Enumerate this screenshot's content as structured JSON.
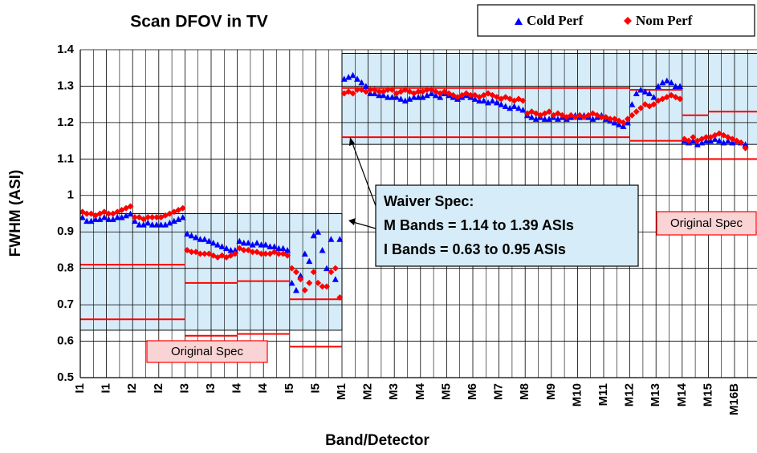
{
  "chart_data": {
    "type": "scatter",
    "title": "Scan DFOV in TV",
    "x_label": "Band/Detector",
    "y_label": "FWHM (ASI)",
    "categories": [
      "I1",
      "I1",
      "I2",
      "I2",
      "I3",
      "I3",
      "I4",
      "I4",
      "I5",
      "I5",
      "M1",
      "M2",
      "M3",
      "M4",
      "M5",
      "M6",
      "M7",
      "M8",
      "M9",
      "M10",
      "M11",
      "M12",
      "M13",
      "M14",
      "M15",
      "M16B"
    ],
    "ylim": [
      0.5,
      1.4
    ],
    "yticks": [
      0.5,
      0.6,
      0.7,
      0.8,
      0.9,
      1,
      1.1,
      1.2,
      1.3,
      1.4
    ],
    "grid": true,
    "legend": "top-right",
    "series": [
      {
        "name": "Cold Perf",
        "color": "#0000ff",
        "marker": "triangle",
        "values": [
          [
            0.94,
            0.93,
            0.93,
            0.935,
            0.935,
            0.94
          ],
          [
            0.935,
            0.935,
            0.94,
            0.94,
            0.945,
            0.95
          ],
          [
            0.93,
            0.92,
            0.92,
            0.925,
            0.92,
            0.92
          ],
          [
            0.92,
            0.92,
            0.925,
            0.93,
            0.935,
            0.94
          ],
          [
            0.895,
            0.89,
            0.885,
            0.88,
            0.88,
            0.875
          ],
          [
            0.87,
            0.865,
            0.86,
            0.855,
            0.85,
            0.85
          ],
          [
            0.875,
            0.87,
            0.87,
            0.865,
            0.87,
            0.865
          ],
          [
            0.865,
            0.86,
            0.86,
            0.855,
            0.855,
            0.85
          ],
          [
            0.76,
            0.74,
            0.78,
            0.84,
            0.82,
            0.89
          ],
          [
            0.9,
            0.85,
            0.8,
            0.88,
            0.77,
            0.88
          ],
          [
            1.32,
            1.325,
            1.33,
            1.32,
            1.31,
            1.3
          ],
          [
            1.28,
            1.28,
            1.275,
            1.275,
            1.27,
            1.27
          ],
          [
            1.27,
            1.265,
            1.26,
            1.265,
            1.27,
            1.27
          ],
          [
            1.27,
            1.275,
            1.28,
            1.275,
            1.27,
            1.28
          ],
          [
            1.275,
            1.27,
            1.265,
            1.27,
            1.275,
            1.27
          ],
          [
            1.265,
            1.26,
            1.26,
            1.255,
            1.26,
            1.255
          ],
          [
            1.25,
            1.245,
            1.24,
            1.245,
            1.24,
            1.235
          ],
          [
            1.22,
            1.215,
            1.21,
            1.215,
            1.21,
            1.21
          ],
          [
            1.215,
            1.21,
            1.215,
            1.21,
            1.215,
            1.22
          ],
          [
            1.215,
            1.22,
            1.215,
            1.21,
            1.215,
            1.22
          ],
          [
            1.21,
            1.205,
            1.2,
            1.195,
            1.19,
            1.2
          ],
          [
            1.25,
            1.28,
            1.29,
            1.285,
            1.28,
            1.27
          ],
          [
            1.3,
            1.31,
            1.315,
            1.31,
            1.3,
            1.3
          ],
          [
            1.15,
            1.145,
            1.15,
            1.14,
            1.145,
            1.15
          ],
          [
            1.15,
            1.155,
            1.15,
            1.145,
            1.15,
            1.145
          ],
          [
            1.15,
            1.145,
            1.14
          ]
        ]
      },
      {
        "name": "Nom Perf",
        "color": "#ff0000",
        "marker": "diamond",
        "values": [
          [
            0.955,
            0.95,
            0.95,
            0.945,
            0.95,
            0.955
          ],
          [
            0.95,
            0.95,
            0.955,
            0.96,
            0.965,
            0.97
          ],
          [
            0.94,
            0.94,
            0.935,
            0.94,
            0.94,
            0.94
          ],
          [
            0.94,
            0.945,
            0.95,
            0.955,
            0.96,
            0.965
          ],
          [
            0.85,
            0.845,
            0.845,
            0.84,
            0.84,
            0.84
          ],
          [
            0.835,
            0.83,
            0.835,
            0.83,
            0.835,
            0.84
          ],
          [
            0.855,
            0.85,
            0.85,
            0.845,
            0.845,
            0.84
          ],
          [
            0.84,
            0.84,
            0.845,
            0.84,
            0.84,
            0.835
          ],
          [
            0.8,
            0.79,
            0.77,
            0.74,
            0.76,
            0.79
          ],
          [
            0.76,
            0.75,
            0.75,
            0.79,
            0.8,
            0.72
          ],
          [
            1.28,
            1.285,
            1.28,
            1.29,
            1.29,
            1.285
          ],
          [
            1.29,
            1.29,
            1.285,
            1.285,
            1.29,
            1.29
          ],
          [
            1.28,
            1.285,
            1.29,
            1.285,
            1.28,
            1.285
          ],
          [
            1.285,
            1.29,
            1.29,
            1.285,
            1.28,
            1.285
          ],
          [
            1.28,
            1.275,
            1.27,
            1.275,
            1.28,
            1.275
          ],
          [
            1.275,
            1.27,
            1.275,
            1.28,
            1.275,
            1.27
          ],
          [
            1.265,
            1.27,
            1.265,
            1.26,
            1.265,
            1.26
          ],
          [
            1.225,
            1.23,
            1.225,
            1.22,
            1.225,
            1.23
          ],
          [
            1.22,
            1.225,
            1.22,
            1.215,
            1.22,
            1.215
          ],
          [
            1.22,
            1.215,
            1.22,
            1.225,
            1.22,
            1.215
          ],
          [
            1.215,
            1.21,
            1.21,
            1.205,
            1.2,
            1.21
          ],
          [
            1.22,
            1.23,
            1.24,
            1.25,
            1.245,
            1.25
          ],
          [
            1.26,
            1.265,
            1.27,
            1.275,
            1.27,
            1.265
          ],
          [
            1.155,
            1.15,
            1.16,
            1.15,
            1.155,
            1.16
          ],
          [
            1.16,
            1.165,
            1.17,
            1.165,
            1.16,
            1.155
          ],
          [
            1.15,
            1.145,
            1.13
          ]
        ]
      }
    ],
    "spec_color": "#ff0000",
    "spec_upper": [
      0.81,
      0.81,
      0.81,
      0.81,
      0.76,
      0.76,
      0.765,
      0.765,
      0.715,
      0.715,
      1.295,
      1.295,
      1.295,
      1.295,
      1.295,
      1.295,
      1.295,
      1.295,
      1.295,
      1.295,
      1.295,
      1.29,
      1.29,
      1.22,
      1.23,
      1.23
    ],
    "spec_lower": [
      0.66,
      0.66,
      0.66,
      0.66,
      0.615,
      0.615,
      0.62,
      0.62,
      0.585,
      0.585,
      1.16,
      1.16,
      1.16,
      1.16,
      1.16,
      1.16,
      1.16,
      1.16,
      1.16,
      1.16,
      1.16,
      1.15,
      1.15,
      1.1,
      1.1,
      1.1
    ],
    "waiver_color": "#d6ecf8",
    "waiver_upper": [
      0.95,
      0.95,
      0.95,
      0.95,
      0.95,
      0.95,
      0.95,
      0.95,
      0.95,
      0.95,
      1.39,
      1.39,
      1.39,
      1.39,
      1.39,
      1.39,
      1.39,
      1.39,
      1.39,
      1.39,
      1.39,
      1.39,
      1.39,
      1.39,
      1.39,
      1.39
    ],
    "waiver_lower": [
      0.63,
      0.63,
      0.63,
      0.63,
      0.63,
      0.63,
      0.63,
      0.63,
      0.63,
      0.63,
      1.14,
      1.14,
      1.14,
      1.14,
      1.14,
      1.14,
      1.14,
      1.14,
      1.14,
      1.14,
      1.14,
      1.14,
      1.14,
      1.14,
      1.14,
      1.14
    ],
    "annotations": {
      "waiver": [
        "Waiver Spec:",
        "M Bands = 1.14 to 1.39 ASIs",
        "I Bands = 0.63 to 0.95 ASIs"
      ],
      "original_spec": [
        "Original Spec",
        "Original Spec"
      ]
    }
  }
}
